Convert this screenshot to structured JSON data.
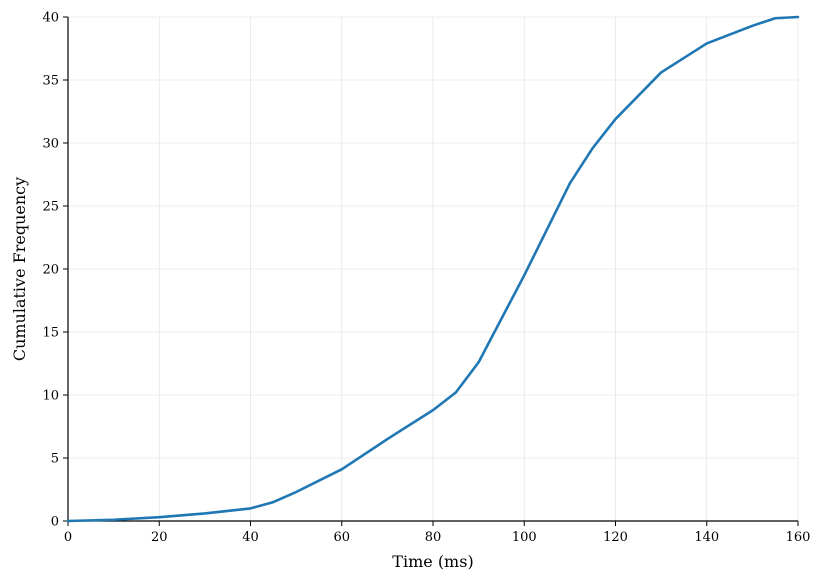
{
  "chart_data": {
    "type": "line",
    "x_label": "Time (ms)",
    "y_label": "Cumulative Frequency",
    "x": [
      0,
      10,
      20,
      30,
      40,
      45,
      50,
      60,
      70,
      80,
      85,
      90,
      100,
      110,
      115,
      120,
      130,
      140,
      150,
      155,
      160
    ],
    "series": [
      {
        "name": "Cumulative Frequency",
        "color": "#1f77b4",
        "values": [
          0,
          0.1,
          0.3,
          0.6,
          1,
          1.5,
          2.3,
          4.1,
          6.5,
          8.8,
          10.2,
          12.6,
          19.5,
          26.8,
          29.6,
          31.9,
          35.6,
          37.9,
          39.3,
          39.9,
          40
        ]
      }
    ],
    "xlim": [
      0,
      160
    ],
    "xticks": [
      0,
      20,
      40,
      60,
      80,
      100,
      120,
      140,
      160
    ],
    "ylim": [
      0,
      40
    ],
    "yticks": [
      0,
      5,
      10,
      15,
      20,
      25,
      30,
      35,
      40
    ],
    "grid": true
  }
}
